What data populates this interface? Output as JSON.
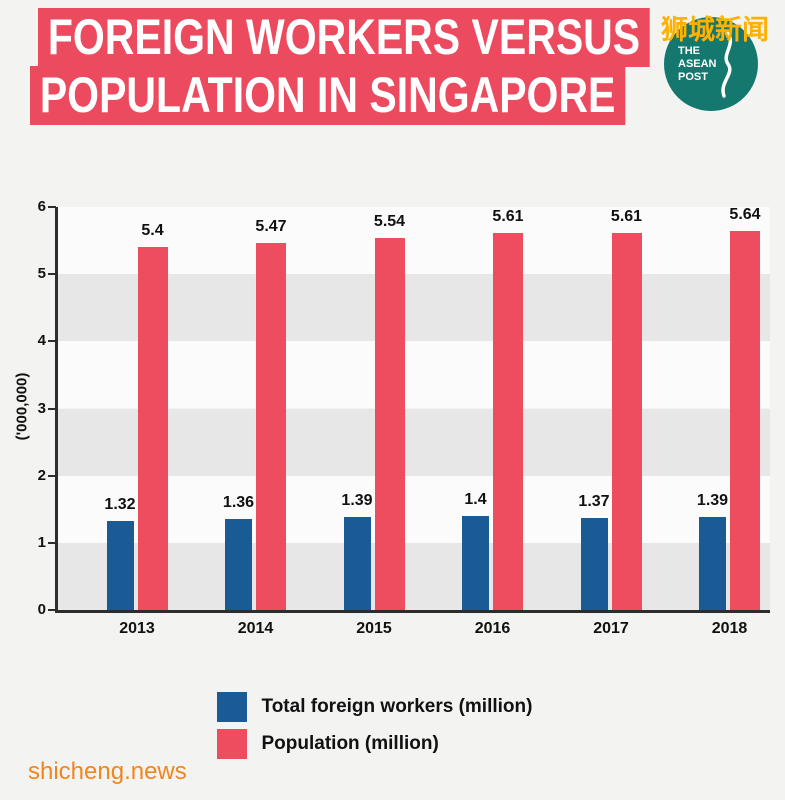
{
  "header": {
    "title_line1": "FOREIGN WORKERS VERSUS",
    "title_line2": "POPULATION IN SINGAPORE",
    "site_name_cn": "狮城新闻"
  },
  "logo": {
    "line1": "THE",
    "line2": "ASEAN",
    "line3": "POST"
  },
  "colors": {
    "banner_red": "#ec4b5f",
    "bar_blue": "#1a5b96",
    "bar_red": "#ee4d60",
    "logo_teal": "#15786f",
    "watermark_orange": "#f0861c",
    "cn_text_orange": "#ffb103"
  },
  "chart_data": {
    "type": "bar",
    "title": "Foreign workers versus population in Singapore",
    "categories": [
      "2013",
      "2014",
      "2015",
      "2016",
      "2017",
      "2018"
    ],
    "series": [
      {
        "name": "Total foreign workers (million)",
        "color": "#1a5b96",
        "values": [
          1.32,
          1.36,
          1.39,
          1.4,
          1.37,
          1.39
        ]
      },
      {
        "name": "Population (million)",
        "color": "#ee4d60",
        "values": [
          5.4,
          5.47,
          5.54,
          5.61,
          5.61,
          5.64
        ]
      }
    ],
    "xlabel": "",
    "ylabel": "('000,000)",
    "ylim": [
      0,
      6
    ],
    "yticks": [
      0,
      1,
      2,
      3,
      4,
      5,
      6
    ],
    "grid": "horizontal-bands",
    "legend_position": "bottom"
  },
  "footer": {
    "watermark": "shicheng.news"
  }
}
